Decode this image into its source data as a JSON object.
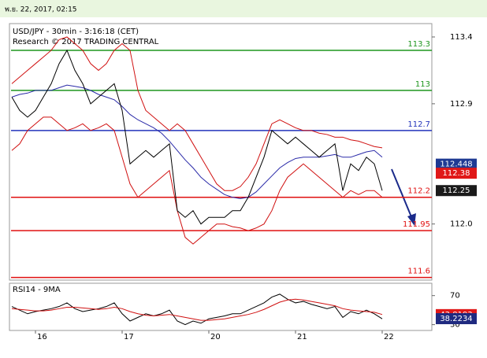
{
  "header": {
    "date": "พ.ย. 22, 2017, 02:15"
  },
  "chart_data": [
    {
      "type": "line",
      "title": "USD/JPY - 30min - 3:16:18 (CET)",
      "subtitle": "Research © 2017 TRADING CENTRAL",
      "categories": [
        null,
        null,
        null,
        "16",
        null,
        null,
        null,
        null,
        null,
        null,
        null,
        null,
        null,
        null,
        "17",
        null,
        null,
        null,
        null,
        null,
        null,
        null,
        null,
        null,
        null,
        "20",
        null,
        null,
        null,
        null,
        null,
        null,
        null,
        null,
        null,
        null,
        "21",
        null,
        null,
        null,
        null,
        null,
        null,
        null,
        null,
        null,
        null,
        "22"
      ],
      "ylim": [
        111.58,
        113.5
      ],
      "yticks": [
        113.4,
        112.9,
        {
          "value": 112,
          "label": "112.0"
        }
      ],
      "series": [
        {
          "color": "#d01010",
          "values": [
            113.05,
            113.1,
            113.15,
            113.2,
            113.25,
            113.3,
            113.38,
            113.4,
            113.35,
            113.3,
            113.2,
            113.15,
            113.2,
            113.3,
            113.35,
            113.3,
            113.0,
            112.85,
            112.8,
            112.75,
            112.7,
            112.75,
            112.7,
            112.6,
            112.5,
            112.4,
            112.3,
            112.25,
            112.25,
            112.28,
            112.35,
            112.45,
            112.6,
            112.75,
            112.78,
            112.75,
            112.72,
            112.7,
            112.7,
            112.68,
            112.67,
            112.65,
            112.65,
            112.63,
            112.62,
            112.6,
            112.58,
            112.57
          ]
        },
        {
          "color": "#d01010",
          "values": [
            112.55,
            112.6,
            112.7,
            112.75,
            112.8,
            112.8,
            112.75,
            112.7,
            112.72,
            112.75,
            112.7,
            112.72,
            112.75,
            112.7,
            112.5,
            112.3,
            112.2,
            112.25,
            112.3,
            112.35,
            112.4,
            112.1,
            111.9,
            111.85,
            111.9,
            111.95,
            112.0,
            112.0,
            111.98,
            111.97,
            111.95,
            111.97,
            112.0,
            112.1,
            112.25,
            112.35,
            112.4,
            112.45,
            112.4,
            112.35,
            112.3,
            112.25,
            112.2,
            112.25,
            112.22,
            112.25,
            112.25,
            112.2
          ]
        },
        {
          "color": "#2a2aa8",
          "values": [
            112.95,
            112.97,
            112.98,
            113.0,
            113.0,
            113.0,
            113.02,
            113.04,
            113.03,
            113.02,
            113.0,
            112.97,
            112.95,
            112.93,
            112.88,
            112.82,
            112.78,
            112.75,
            112.72,
            112.68,
            112.62,
            112.55,
            112.48,
            112.42,
            112.35,
            112.3,
            112.26,
            112.22,
            112.2,
            112.19,
            112.2,
            112.24,
            112.3,
            112.36,
            112.42,
            112.46,
            112.49,
            112.5,
            112.5,
            112.5,
            112.51,
            112.52,
            112.5,
            112.5,
            112.52,
            112.54,
            112.55,
            112.5
          ]
        },
        {
          "color": "#000000",
          "values": [
            112.95,
            112.85,
            112.8,
            112.85,
            112.95,
            113.05,
            113.2,
            113.3,
            113.15,
            113.05,
            112.9,
            112.95,
            113.0,
            113.05,
            112.85,
            112.45,
            112.5,
            112.55,
            112.5,
            112.55,
            112.6,
            112.1,
            112.05,
            112.1,
            112.0,
            112.05,
            112.05,
            112.05,
            112.1,
            112.1,
            112.2,
            112.35,
            112.5,
            112.7,
            112.65,
            112.6,
            112.65,
            112.6,
            112.55,
            112.5,
            112.55,
            112.6,
            112.25,
            112.45,
            112.4,
            112.5,
            112.45,
            112.25
          ]
        }
      ],
      "levels": [
        {
          "value": 113.3,
          "color": "#1e961e"
        },
        {
          "value": 113,
          "color": "#1e961e"
        },
        {
          "value": 112.7,
          "color": "#2233bb"
        },
        {
          "value": 112.2,
          "color": "#e01010"
        },
        {
          "value": 111.95,
          "color": "#e01010"
        },
        {
          "value": 111.6,
          "color": "#e01010"
        }
      ],
      "markers": [
        {
          "value": 112.448,
          "color": "#1f3a93"
        },
        {
          "value": 112.38,
          "color": "#e01818"
        },
        {
          "value": 112.25,
          "color": "#1a1a1a"
        }
      ]
    },
    {
      "type": "line",
      "title": "RSI14 - 9MA",
      "ylim": [
        22,
        87
      ],
      "yticks": [
        70,
        30
      ],
      "series": [
        {
          "color": "#000000",
          "values": [
            55,
            50,
            45,
            48,
            50,
            52,
            55,
            60,
            52,
            48,
            50,
            52,
            55,
            60,
            45,
            35,
            40,
            45,
            42,
            45,
            50,
            35,
            30,
            35,
            32,
            38,
            40,
            42,
            45,
            45,
            50,
            55,
            60,
            68,
            72,
            65,
            60,
            62,
            58,
            55,
            52,
            55,
            40,
            48,
            45,
            50,
            45,
            38
          ]
        },
        {
          "color": "#d01010",
          "values": [
            52,
            51,
            50,
            49,
            49,
            50,
            52,
            54,
            54,
            53,
            52,
            51,
            52,
            54,
            52,
            48,
            45,
            43,
            42,
            43,
            44,
            42,
            40,
            38,
            36,
            36,
            37,
            38,
            40,
            42,
            44,
            47,
            51,
            56,
            61,
            64,
            65,
            64,
            62,
            60,
            58,
            56,
            52,
            50,
            49,
            48,
            47,
            44
          ]
        }
      ],
      "markers": [
        {
          "value": 43.8193,
          "color": "#e01818"
        },
        {
          "value": 38.2234,
          "color": "#1f2a80"
        }
      ]
    }
  ]
}
